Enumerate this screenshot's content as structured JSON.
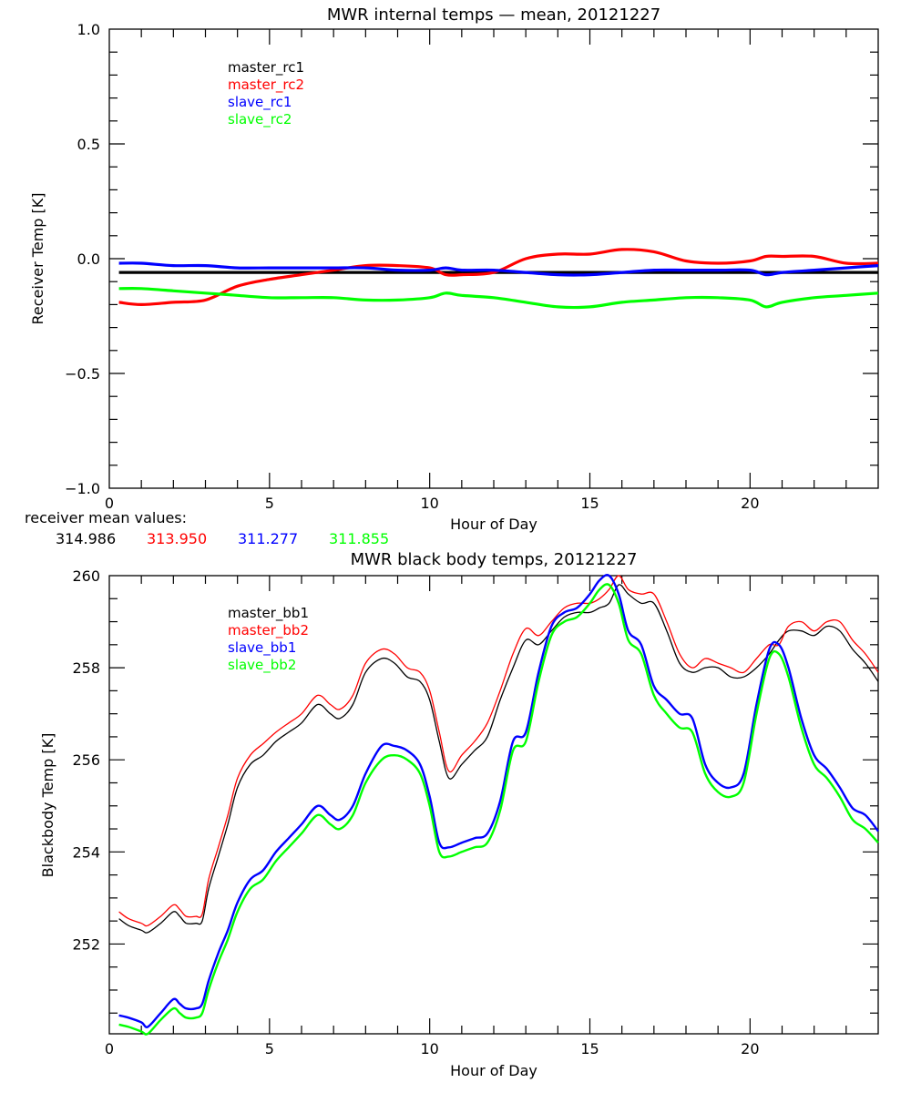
{
  "chart_data": [
    {
      "type": "line",
      "title": "MWR internal temps — mean, 20121227",
      "xlabel": "Hour of Day",
      "ylabel": "Receiver Temp [K]",
      "xlim": [
        0,
        24
      ],
      "ylim": [
        -1.0,
        1.0
      ],
      "xticks": [
        0,
        5,
        10,
        15,
        20
      ],
      "xtick_labels": [
        "0",
        "5",
        "10",
        "15",
        "20"
      ],
      "yticks": [
        -1.0,
        -0.5,
        0.0,
        0.5,
        1.0
      ],
      "ytick_labels": [
        "−1.0",
        "−0.5",
        "0.0",
        "0.5",
        "1.0"
      ],
      "x_minor_step": 1,
      "y_minor_step": 0.1,
      "grid": false,
      "legend_position": "top-left-inset",
      "x": [
        0.3,
        1,
        2,
        3,
        4,
        5,
        6,
        7,
        8,
        9,
        10,
        10.5,
        11,
        12,
        13,
        14,
        15,
        16,
        17,
        18,
        19,
        20,
        20.5,
        21,
        22,
        23,
        24
      ],
      "series": [
        {
          "name": "master_rc1",
          "color": "#000000",
          "values": [
            -0.06,
            -0.06,
            -0.06,
            -0.06,
            -0.06,
            -0.06,
            -0.06,
            -0.06,
            -0.06,
            -0.06,
            -0.06,
            -0.06,
            -0.06,
            -0.06,
            -0.06,
            -0.06,
            -0.06,
            -0.06,
            -0.06,
            -0.06,
            -0.06,
            -0.06,
            -0.06,
            -0.06,
            -0.06,
            -0.06,
            -0.06
          ]
        },
        {
          "name": "master_rc2",
          "color": "#ff0000",
          "values": [
            -0.19,
            -0.2,
            -0.19,
            -0.18,
            -0.12,
            -0.09,
            -0.07,
            -0.05,
            -0.03,
            -0.03,
            -0.04,
            -0.07,
            -0.07,
            -0.06,
            0.0,
            0.02,
            0.02,
            0.04,
            0.03,
            -0.01,
            -0.02,
            -0.01,
            0.01,
            0.01,
            0.01,
            -0.02,
            -0.02
          ]
        },
        {
          "name": "slave_rc1",
          "color": "#0000ff",
          "values": [
            -0.02,
            -0.02,
            -0.03,
            -0.03,
            -0.04,
            -0.04,
            -0.04,
            -0.04,
            -0.04,
            -0.05,
            -0.05,
            -0.04,
            -0.05,
            -0.05,
            -0.06,
            -0.07,
            -0.07,
            -0.06,
            -0.05,
            -0.05,
            -0.05,
            -0.05,
            -0.07,
            -0.06,
            -0.05,
            -0.04,
            -0.03
          ]
        },
        {
          "name": "slave_rc2",
          "color": "#00ff00",
          "values": [
            -0.13,
            -0.13,
            -0.14,
            -0.15,
            -0.16,
            -0.17,
            -0.17,
            -0.17,
            -0.18,
            -0.18,
            -0.17,
            -0.15,
            -0.16,
            -0.17,
            -0.19,
            -0.21,
            -0.21,
            -0.19,
            -0.18,
            -0.17,
            -0.17,
            -0.18,
            -0.21,
            -0.19,
            -0.17,
            -0.16,
            -0.15
          ]
        }
      ],
      "annotations": {
        "mean_label": "receiver mean values:",
        "means": [
          {
            "series": "master_rc1",
            "value": "314.986",
            "color": "#000000"
          },
          {
            "series": "master_rc2",
            "value": "313.950",
            "color": "#ff0000"
          },
          {
            "series": "slave_rc1",
            "value": "311.277",
            "color": "#0000ff"
          },
          {
            "series": "slave_rc2",
            "value": "311.855",
            "color": "#00ff00"
          }
        ]
      }
    },
    {
      "type": "line",
      "title": "MWR black body temps, 20121227",
      "xlabel": "Hour of Day",
      "ylabel": "Blackbody Temp [K]",
      "xlim": [
        0,
        24
      ],
      "ylim": [
        250.05,
        260
      ],
      "xticks": [
        0,
        5,
        10,
        15,
        20
      ],
      "xtick_labels": [
        "0",
        "5",
        "10",
        "15",
        "20"
      ],
      "yticks": [
        252,
        254,
        256,
        258,
        260
      ],
      "ytick_labels": [
        "252",
        "254",
        "256",
        "258",
        "260"
      ],
      "x_minor_step": 1,
      "y_minor_step": 0.5,
      "grid": false,
      "legend_position": "top-left-inset",
      "x": [
        0.3,
        0.6,
        1.0,
        1.2,
        1.6,
        2.0,
        2.2,
        2.4,
        2.7,
        2.9,
        3.1,
        3.4,
        3.7,
        4.0,
        4.4,
        4.8,
        5.2,
        5.6,
        6.0,
        6.5,
        6.9,
        7.2,
        7.6,
        8.0,
        8.5,
        8.9,
        9.3,
        9.7,
        10.0,
        10.3,
        10.6,
        11.0,
        11.4,
        11.8,
        12.2,
        12.6,
        13.0,
        13.4,
        13.8,
        14.2,
        14.6,
        15.0,
        15.3,
        15.6,
        15.9,
        16.2,
        16.6,
        17.0,
        17.4,
        17.8,
        18.2,
        18.6,
        19.0,
        19.4,
        19.8,
        20.2,
        20.6,
        20.9,
        21.2,
        21.6,
        22.0,
        22.4,
        22.8,
        23.2,
        23.6,
        24.0
      ],
      "series": [
        {
          "name": "master_bb1",
          "color": "#000000",
          "values": [
            252.55,
            252.4,
            252.3,
            252.25,
            252.45,
            252.7,
            252.6,
            252.45,
            252.45,
            252.5,
            253.2,
            253.9,
            254.6,
            255.4,
            255.9,
            256.1,
            256.4,
            256.6,
            256.8,
            257.2,
            257.0,
            256.9,
            257.2,
            257.9,
            258.2,
            258.1,
            257.8,
            257.7,
            257.3,
            256.4,
            255.6,
            255.9,
            256.2,
            256.5,
            257.3,
            258.0,
            258.6,
            258.5,
            258.8,
            259.1,
            259.2,
            259.2,
            259.3,
            259.4,
            259.8,
            259.6,
            259.4,
            259.4,
            258.8,
            258.1,
            257.9,
            258.0,
            258.0,
            257.8,
            257.8,
            258.0,
            258.3,
            258.6,
            258.8,
            258.8,
            258.7,
            258.9,
            258.8,
            258.4,
            258.1,
            257.7
          ]
        },
        {
          "name": "master_bb2",
          "color": "#ff0000",
          "values": [
            252.7,
            252.55,
            252.45,
            252.4,
            252.6,
            252.85,
            252.75,
            252.6,
            252.6,
            252.65,
            253.4,
            254.1,
            254.8,
            255.6,
            256.1,
            256.35,
            256.6,
            256.8,
            257.0,
            257.4,
            257.2,
            257.1,
            257.4,
            258.1,
            258.4,
            258.3,
            258.0,
            257.9,
            257.5,
            256.6,
            255.75,
            256.1,
            256.4,
            256.8,
            257.5,
            258.3,
            258.85,
            258.7,
            259.0,
            259.3,
            259.4,
            259.4,
            259.5,
            259.7,
            260.0,
            259.7,
            259.6,
            259.6,
            259.0,
            258.3,
            258.0,
            258.2,
            258.1,
            258.0,
            257.9,
            258.2,
            258.5,
            258.5,
            258.9,
            259.0,
            258.8,
            259.0,
            259.0,
            258.6,
            258.3,
            257.9
          ]
        },
        {
          "name": "slave_bb1",
          "color": "#0000ff",
          "values": [
            250.45,
            250.4,
            250.3,
            250.2,
            250.5,
            250.8,
            250.7,
            250.6,
            250.6,
            250.7,
            251.2,
            251.8,
            252.3,
            252.9,
            253.4,
            253.6,
            254.0,
            254.3,
            254.6,
            255.0,
            254.8,
            254.7,
            255.0,
            255.7,
            256.3,
            256.3,
            256.2,
            255.9,
            255.2,
            254.2,
            254.1,
            254.2,
            254.3,
            254.4,
            255.1,
            256.4,
            256.6,
            257.9,
            258.9,
            259.2,
            259.3,
            259.6,
            259.9,
            260.0,
            259.6,
            258.8,
            258.5,
            257.6,
            257.3,
            257.0,
            256.9,
            255.9,
            255.5,
            255.4,
            255.7,
            257.2,
            258.4,
            258.5,
            258.0,
            256.9,
            256.1,
            255.8,
            255.4,
            254.95,
            254.8,
            254.45
          ]
        },
        {
          "name": "slave_bb2",
          "color": "#00ff00",
          "values": [
            250.25,
            250.2,
            250.1,
            250.05,
            250.35,
            250.6,
            250.5,
            250.4,
            250.4,
            250.5,
            251.0,
            251.6,
            252.1,
            252.7,
            253.2,
            253.4,
            253.8,
            254.1,
            254.4,
            254.8,
            254.6,
            254.5,
            254.8,
            255.5,
            256.0,
            256.1,
            256.0,
            255.7,
            255.0,
            254.0,
            253.9,
            254.0,
            254.1,
            254.2,
            254.9,
            256.2,
            256.4,
            257.7,
            258.7,
            259.0,
            259.1,
            259.4,
            259.7,
            259.8,
            259.4,
            258.6,
            258.3,
            257.4,
            257.0,
            256.7,
            256.6,
            255.7,
            255.3,
            255.2,
            255.5,
            257.0,
            258.2,
            258.3,
            257.8,
            256.7,
            255.9,
            255.6,
            255.2,
            254.7,
            254.5,
            254.2
          ]
        }
      ]
    }
  ]
}
